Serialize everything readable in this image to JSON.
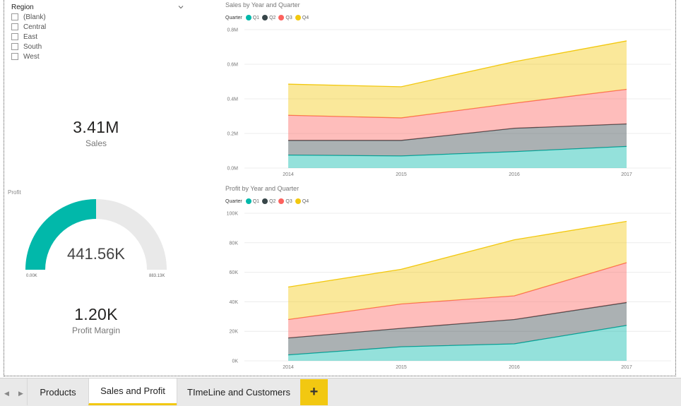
{
  "slicer": {
    "title": "Region",
    "items": [
      "(Blank)",
      "Central",
      "East",
      "South",
      "West"
    ]
  },
  "cards": {
    "sales": {
      "value": "3.41M",
      "label": "Sales"
    },
    "profit_margin": {
      "value": "1.20K",
      "label": "Profit Margin"
    }
  },
  "gauge": {
    "title": "Profit",
    "value": "441.56K",
    "min": "0.00K",
    "max": "883.13K",
    "fraction": 0.5,
    "fill_color": "#01b8aa",
    "track_color": "#e9e9e9"
  },
  "legend": {
    "title": "Quarter",
    "items": [
      {
        "name": "Q1",
        "color": "#01b8aa"
      },
      {
        "name": "Q2",
        "color": "#374649"
      },
      {
        "name": "Q3",
        "color": "#fd625e"
      },
      {
        "name": "Q4",
        "color": "#f2c80f"
      }
    ]
  },
  "chart_data": [
    {
      "type": "area",
      "stacked": true,
      "title": "Sales by Year and Quarter",
      "x": [
        "2014",
        "2015",
        "2016",
        "2017"
      ],
      "ylim": [
        0,
        0.8
      ],
      "yticks": [
        "0.0M",
        "0.2M",
        "0.4M",
        "0.6M",
        "0.8M"
      ],
      "grid": true,
      "legend_position": "top-left",
      "series": [
        {
          "name": "Q1",
          "values": [
            0.075,
            0.07,
            0.095,
            0.125
          ]
        },
        {
          "name": "Q2",
          "values": [
            0.085,
            0.09,
            0.135,
            0.13
          ]
        },
        {
          "name": "Q3",
          "values": [
            0.145,
            0.13,
            0.145,
            0.2
          ]
        },
        {
          "name": "Q4",
          "values": [
            0.18,
            0.18,
            0.24,
            0.28
          ]
        }
      ]
    },
    {
      "type": "area",
      "stacked": true,
      "title": "Profit by Year and Quarter",
      "x": [
        "2014",
        "2015",
        "2016",
        "2017"
      ],
      "ylim": [
        0,
        100
      ],
      "yticks": [
        "0K",
        "20K",
        "40K",
        "60K",
        "80K",
        "100K"
      ],
      "grid": true,
      "legend_position": "top-left",
      "series": [
        {
          "name": "Q1",
          "values": [
            4,
            9.5,
            11.5,
            24
          ]
        },
        {
          "name": "Q2",
          "values": [
            11.5,
            12.5,
            16.5,
            15.5
          ]
        },
        {
          "name": "Q3",
          "values": [
            12.5,
            16.5,
            16,
            27
          ]
        },
        {
          "name": "Q4",
          "values": [
            22,
            23.5,
            38,
            28
          ]
        }
      ]
    }
  ],
  "tabs": [
    {
      "label": "Products",
      "active": false
    },
    {
      "label": "Sales and Profit",
      "active": true
    },
    {
      "label": "TImeLine and Customers",
      "active": false
    }
  ],
  "add_tab_label": "+",
  "nav": {
    "prev": "◀",
    "next": "▶"
  }
}
